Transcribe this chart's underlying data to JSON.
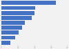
{
  "values": [
    33.0,
    20.5,
    19.8,
    18.5,
    14.0,
    12.5,
    10.5,
    8.5,
    5.5
  ],
  "bar_color": "#4472c4",
  "background_color": "#f2f2f2",
  "xlim": [
    0,
    40
  ],
  "ylim": [
    -0.5,
    8.5
  ],
  "figsize": [
    1.0,
    0.71
  ],
  "dpi": 100
}
